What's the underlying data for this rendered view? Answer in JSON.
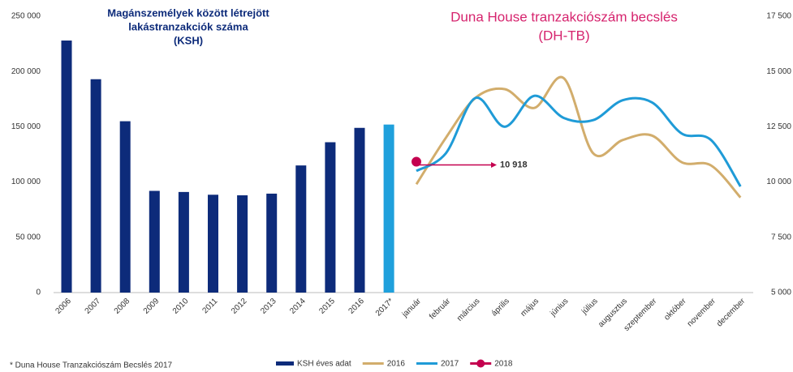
{
  "chart_data": [
    {
      "type": "bar",
      "title": [
        "Magánszemélyek között létrejött",
        "lakástranzakciók száma",
        "(KSH)"
      ],
      "categories": [
        "2006",
        "2007",
        "2008",
        "2009",
        "2010",
        "2011",
        "2012",
        "2013",
        "2014",
        "2015",
        "2016",
        "2017*"
      ],
      "series": [
        {
          "name": "KSH éves adat",
          "color": "#0d2b7a",
          "values": [
            228000,
            193000,
            155000,
            92000,
            91000,
            88500,
            88000,
            89500,
            115000,
            136000,
            149000,
            152000
          ]
        }
      ],
      "bar_colors": [
        "#0d2b7a",
        "#0d2b7a",
        "#0d2b7a",
        "#0d2b7a",
        "#0d2b7a",
        "#0d2b7a",
        "#0d2b7a",
        "#0d2b7a",
        "#0d2b7a",
        "#0d2b7a",
        "#0d2b7a",
        "#1fa0dc"
      ],
      "ylim": [
        0,
        250000
      ],
      "yticks": [
        {
          "value": 0,
          "label": "0"
        },
        {
          "value": 50000,
          "label": "50 000"
        },
        {
          "value": 100000,
          "label": "100 000"
        },
        {
          "value": 150000,
          "label": "150 000"
        },
        {
          "value": 200000,
          "label": "200 000"
        },
        {
          "value": 250000,
          "label": "250 000"
        }
      ]
    },
    {
      "type": "line",
      "title": [
        "Duna House tranzakciószám becslés",
        "(DH-TB)"
      ],
      "title_color": "#d6246e",
      "categories": [
        "január",
        "február",
        "március",
        "április",
        "május",
        "június",
        "július",
        "augusztus",
        "szeptember",
        "október",
        "november",
        "december"
      ],
      "series": [
        {
          "name": "2016",
          "color": "#d2ad6c",
          "values": [
            9900,
            12000,
            13800,
            14200,
            13350,
            14700,
            11300,
            11900,
            12100,
            10900,
            10750,
            9300
          ]
        },
        {
          "name": "2017",
          "color": "#1f9bd7",
          "values": [
            10500,
            11300,
            13800,
            12500,
            13900,
            12900,
            12800,
            13700,
            13600,
            12200,
            11900,
            9800
          ]
        },
        {
          "name": "2018",
          "color": "#c4004f",
          "values": [
            10918,
            null,
            null,
            null,
            null,
            null,
            null,
            null,
            null,
            null,
            null,
            null
          ],
          "value_labels": [
            "10 918",
            null,
            null,
            null,
            null,
            null,
            null,
            null,
            null,
            null,
            null,
            null
          ]
        }
      ],
      "axis_side": "right",
      "ylim": [
        5000,
        17500
      ],
      "yticks": [
        {
          "value": 5000,
          "label": "5 000"
        },
        {
          "value": 7500,
          "label": "7 500"
        },
        {
          "value": 10000,
          "label": "10 000"
        },
        {
          "value": 12500,
          "label": "12 500"
        },
        {
          "value": 15000,
          "label": "15 000"
        },
        {
          "value": 17500,
          "label": "17 500"
        }
      ]
    }
  ],
  "footnote": "* Duna House Tranzakciószám Becslés 2017"
}
